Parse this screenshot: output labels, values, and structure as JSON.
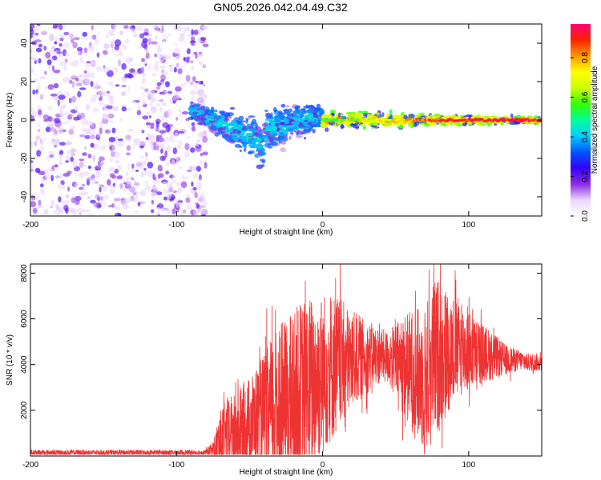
{
  "title": "GN05.2026.042.04.49.C32",
  "chart_data": [
    {
      "type": "heatmap",
      "title": "",
      "xlabel": "Height of straight line (km)",
      "ylabel": "Frequency (Hz)",
      "xlim": [
        -200,
        150
      ],
      "ylim": [
        -50,
        50
      ],
      "x_ticks": [
        -200,
        -100,
        0,
        100
      ],
      "y_ticks": [
        -40,
        -20,
        0,
        20,
        40
      ],
      "x_tick_labels": [
        "-200",
        "-100",
        "0",
        "100"
      ],
      "y_tick_labels": [
        "-40",
        "-20",
        "0",
        "20",
        "40"
      ],
      "colorbar": {
        "label": "Normalized spectral amplitude",
        "range": [
          0.0,
          0.97
        ],
        "ticks": [
          0.0,
          0.2,
          0.4,
          0.6,
          0.8
        ],
        "tick_labels": [
          "0.0",
          "0.2",
          "0.4",
          "0.6",
          "0.8"
        ],
        "colormap": [
          "#ffffff",
          "#ead6ff",
          "#8a2be2",
          "#3300ff",
          "#0055ff",
          "#00ccff",
          "#00ff99",
          "#33ff00",
          "#ccff00",
          "#ffff00",
          "#ff9900",
          "#ff2200",
          "#ff0077"
        ]
      },
      "regions": [
        {
          "name": "noise",
          "x_range": [
            -200,
            -80
          ],
          "freq_spread_hz": 50,
          "amplitude": [
            0.05,
            0.25
          ]
        },
        {
          "name": "onset",
          "x_range": [
            -90,
            -40
          ],
          "centroid_hz": [
            5,
            -12
          ],
          "spread_hz": [
            6,
            16
          ],
          "amplitude": [
            0.25,
            0.5
          ]
        },
        {
          "name": "broadband",
          "x_range": [
            -40,
            0
          ],
          "centroid_hz": [
            -5,
            2
          ],
          "spread_hz": [
            16,
            8
          ],
          "amplitude": [
            0.25,
            0.5
          ]
        },
        {
          "name": "tonal",
          "x_range": [
            0,
            150
          ],
          "centroid_hz": [
            0,
            0
          ],
          "spread_hz": [
            6,
            2
          ],
          "amplitude": [
            0.5,
            0.9
          ]
        }
      ]
    },
    {
      "type": "line",
      "title": "",
      "xlabel": "Height of straight line (km)",
      "ylabel": "SNR (10 * v/v)",
      "xlim": [
        -200,
        150
      ],
      "ylim": [
        0,
        8400
      ],
      "x_ticks": [
        -200,
        -100,
        0,
        100
      ],
      "y_ticks": [
        2000,
        4000,
        6000,
        8000
      ],
      "x_tick_labels": [
        "-200",
        "-100",
        "0",
        "100"
      ],
      "y_tick_labels": [
        "2000",
        "4000",
        "6000",
        "8000"
      ],
      "color": "#ee3333",
      "series": [
        {
          "name": "SNR envelope",
          "x": [
            -200,
            -80,
            -75,
            -70,
            -65,
            -60,
            -55,
            -50,
            -45,
            -40,
            -35,
            -30,
            -25,
            -20,
            -15,
            -10,
            -5,
            0,
            5,
            10,
            15,
            20,
            25,
            30,
            35,
            40,
            45,
            50,
            55,
            60,
            65,
            70,
            75,
            80,
            85,
            90,
            95,
            100,
            105,
            110,
            115,
            120,
            125,
            130,
            135,
            140,
            145,
            150
          ],
          "mean": [
            150,
            150,
            300,
            600,
            900,
            1000,
            1200,
            1400,
            1600,
            1800,
            2000,
            2200,
            2300,
            2500,
            2800,
            3000,
            3300,
            3600,
            3900,
            4000,
            4100,
            4200,
            4300,
            4300,
            4400,
            4400,
            4300,
            4200,
            4000,
            3800,
            3500,
            3400,
            4000,
            4500,
            4600,
            4700,
            4700,
            4600,
            4500,
            4500,
            4400,
            4300,
            4200,
            4200,
            4200,
            4100,
            4100,
            4100
          ],
          "spread": [
            120,
            120,
            350,
            1400,
            1700,
            1700,
            1900,
            2100,
            2400,
            2700,
            3200,
            3500,
            3700,
            3900,
            4000,
            4000,
            3800,
            3600,
            3400,
            3100,
            2600,
            2200,
            1900,
            1600,
            1400,
            1200,
            1200,
            1600,
            2200,
            2600,
            3000,
            3200,
            3600,
            3400,
            2800,
            2400,
            2100,
            1800,
            1500,
            1300,
            1100,
            900,
            700,
            550,
            450,
            400,
            400,
            400
          ]
        }
      ]
    }
  ]
}
